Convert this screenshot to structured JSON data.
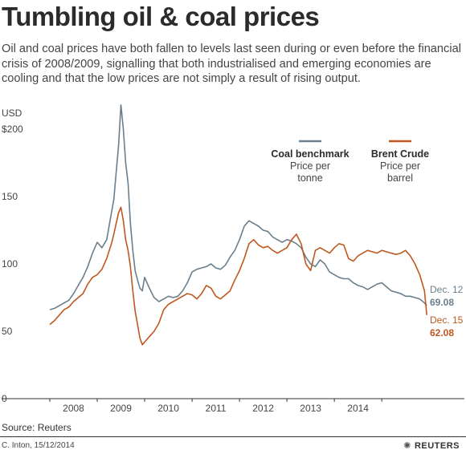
{
  "title": "Tumbling oil & coal prices",
  "subtitle": "Oil and coal prices have both fallen to levels last seen during or even before the financial crisis of 2008/2009, signalling that both industrialised and emerging economies are cooling and that the low prices are not simply a result of rising output.",
  "source": "Source: Reuters",
  "credit": "C. Inton, 15/12/2014",
  "logo_text": "REUTERS",
  "chart_data": {
    "type": "line",
    "y_unit_label": "USD",
    "y_ticks": [
      {
        "value": 0,
        "label": "0"
      },
      {
        "value": 50,
        "label": "50"
      },
      {
        "value": 100,
        "label": "100"
      },
      {
        "value": 150,
        "label": "150"
      },
      {
        "value": 200,
        "label": "$200"
      }
    ],
    "x_ticks": [
      "2008",
      "2009",
      "2010",
      "2011",
      "2012",
      "2013",
      "2014"
    ],
    "ylim": [
      0,
      215
    ],
    "xlim": [
      2007.0,
      2014.98
    ],
    "grid": false,
    "colors": {
      "coal": "#6a7f8d",
      "brent": "#c0571e"
    },
    "series": [
      {
        "key": "coal",
        "name": "Coal benchmark",
        "unit": "Price per tonne",
        "end_date": "Dec. 12",
        "end_value": "69.08",
        "x": [
          2007.0,
          2007.1,
          2007.2,
          2007.3,
          2007.4,
          2007.5,
          2007.6,
          2007.7,
          2007.8,
          2007.9,
          2008.0,
          2008.1,
          2008.2,
          2008.3,
          2008.35,
          2008.4,
          2008.45,
          2008.5,
          2008.55,
          2008.6,
          2008.65,
          2008.7,
          2008.75,
          2008.8,
          2008.85,
          2008.9,
          2008.95,
          2009.0,
          2009.1,
          2009.2,
          2009.3,
          2009.4,
          2009.5,
          2009.6,
          2009.7,
          2009.8,
          2009.9,
          2010.0,
          2010.1,
          2010.2,
          2010.3,
          2010.4,
          2010.5,
          2010.6,
          2010.7,
          2010.8,
          2010.9,
          2011.0,
          2011.1,
          2011.2,
          2011.3,
          2011.4,
          2011.5,
          2011.6,
          2011.7,
          2011.8,
          2011.9,
          2012.0,
          2012.1,
          2012.2,
          2012.3,
          2012.4,
          2012.5,
          2012.6,
          2012.7,
          2012.8,
          2012.9,
          2013.0,
          2013.1,
          2013.2,
          2013.3,
          2013.4,
          2013.5,
          2013.6,
          2013.7,
          2013.8,
          2013.9,
          2014.0,
          2014.1,
          2014.2,
          2014.3,
          2014.4,
          2014.5,
          2014.6,
          2014.7,
          2014.8,
          2014.9,
          2014.95
        ],
        "values": [
          66,
          67,
          69,
          71,
          73,
          78,
          84,
          90,
          98,
          108,
          116,
          112,
          118,
          138,
          148,
          168,
          188,
          218,
          200,
          175,
          160,
          130,
          110,
          95,
          88,
          82,
          80,
          90,
          82,
          75,
          72,
          74,
          76,
          75,
          76,
          80,
          86,
          94,
          96,
          97,
          98,
          100,
          97,
          96,
          99,
          105,
          110,
          118,
          128,
          132,
          130,
          128,
          125,
          124,
          120,
          118,
          116,
          118,
          117,
          115,
          112,
          105,
          100,
          98,
          103,
          100,
          94,
          92,
          90,
          89,
          89,
          86,
          84,
          83,
          81,
          83,
          85,
          86,
          83,
          80,
          79,
          78,
          76,
          76,
          75,
          74,
          71,
          69
        ]
      },
      {
        "key": "brent",
        "name": "Brent Crude",
        "unit": "Price per barrel",
        "end_date": "Dec. 15",
        "end_value": "62.08",
        "x": [
          2007.0,
          2007.1,
          2007.2,
          2007.3,
          2007.4,
          2007.5,
          2007.6,
          2007.7,
          2007.8,
          2007.9,
          2008.0,
          2008.1,
          2008.2,
          2008.3,
          2008.35,
          2008.4,
          2008.45,
          2008.5,
          2008.55,
          2008.6,
          2008.65,
          2008.7,
          2008.75,
          2008.8,
          2008.85,
          2008.9,
          2008.95,
          2009.0,
          2009.1,
          2009.2,
          2009.3,
          2009.4,
          2009.5,
          2009.6,
          2009.7,
          2009.8,
          2009.9,
          2010.0,
          2010.1,
          2010.2,
          2010.3,
          2010.4,
          2010.5,
          2010.6,
          2010.7,
          2010.8,
          2010.9,
          2011.0,
          2011.1,
          2011.2,
          2011.3,
          2011.4,
          2011.5,
          2011.6,
          2011.7,
          2011.8,
          2011.9,
          2012.0,
          2012.1,
          2012.2,
          2012.3,
          2012.4,
          2012.5,
          2012.6,
          2012.7,
          2012.8,
          2012.9,
          2013.0,
          2013.1,
          2013.2,
          2013.3,
          2013.4,
          2013.5,
          2013.6,
          2013.7,
          2013.8,
          2013.9,
          2014.0,
          2014.1,
          2014.2,
          2014.3,
          2014.4,
          2014.5,
          2014.6,
          2014.7,
          2014.8,
          2014.9,
          2014.95
        ],
        "values": [
          55,
          58,
          62,
          66,
          68,
          72,
          75,
          78,
          85,
          90,
          92,
          96,
          104,
          115,
          122,
          130,
          138,
          142,
          132,
          118,
          110,
          98,
          80,
          65,
          55,
          45,
          40,
          42,
          46,
          50,
          56,
          66,
          70,
          72,
          74,
          76,
          78,
          77,
          74,
          78,
          84,
          82,
          76,
          74,
          77,
          80,
          88,
          95,
          104,
          115,
          118,
          114,
          112,
          113,
          110,
          108,
          110,
          112,
          118,
          122,
          115,
          100,
          95,
          110,
          112,
          110,
          108,
          112,
          115,
          114,
          104,
          102,
          106,
          108,
          110,
          109,
          108,
          110,
          109,
          108,
          107,
          108,
          110,
          106,
          100,
          92,
          80,
          62
        ]
      }
    ]
  }
}
